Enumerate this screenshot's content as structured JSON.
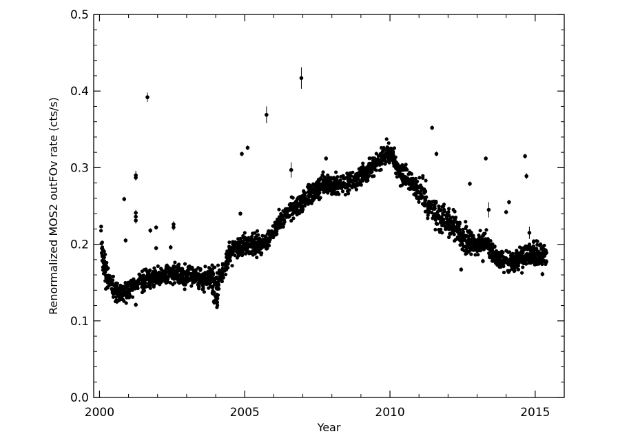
{
  "chart_data": {
    "type": "scatter",
    "title": "",
    "xlabel": "Year",
    "ylabel": "Renormalized MOS2 outFOv rate (cts/s)",
    "xlim": [
      1999.8,
      2016.0
    ],
    "ylim": [
      0.0,
      0.5
    ],
    "x_ticks": [
      {
        "value": 2000,
        "label": "2000"
      },
      {
        "value": 2005,
        "label": "2005"
      },
      {
        "value": 2010,
        "label": "2010"
      },
      {
        "value": 2015,
        "label": "2015"
      }
    ],
    "y_ticks": [
      {
        "value": 0.0,
        "label": "0.0"
      },
      {
        "value": 0.1,
        "label": "0.1"
      },
      {
        "value": 0.2,
        "label": "0.2"
      },
      {
        "value": 0.3,
        "label": "0.3"
      },
      {
        "value": 0.4,
        "label": "0.4"
      },
      {
        "value": 0.5,
        "label": "0.5"
      }
    ],
    "x_minor_step": 1,
    "y_minor_step": 0.02,
    "grid": false,
    "marker_color": "#000000",
    "trend": [
      [
        2000.05,
        0.22
      ],
      [
        2000.1,
        0.19
      ],
      [
        2000.2,
        0.165
      ],
      [
        2000.35,
        0.15
      ],
      [
        2000.5,
        0.14
      ],
      [
        2000.8,
        0.135
      ],
      [
        2001.0,
        0.14
      ],
      [
        2001.3,
        0.15
      ],
      [
        2001.7,
        0.155
      ],
      [
        2002.0,
        0.157
      ],
      [
        2002.5,
        0.16
      ],
      [
        2003.0,
        0.158
      ],
      [
        2003.5,
        0.155
      ],
      [
        2003.9,
        0.155
      ],
      [
        2004.0,
        0.14
      ],
      [
        2004.2,
        0.16
      ],
      [
        2004.4,
        0.18
      ],
      [
        2004.7,
        0.195
      ],
      [
        2005.0,
        0.2
      ],
      [
        2005.5,
        0.2
      ],
      [
        2005.8,
        0.205
      ],
      [
        2006.0,
        0.22
      ],
      [
        2006.3,
        0.235
      ],
      [
        2006.6,
        0.245
      ],
      [
        2007.0,
        0.255
      ],
      [
        2007.3,
        0.265
      ],
      [
        2007.6,
        0.275
      ],
      [
        2008.0,
        0.278
      ],
      [
        2008.5,
        0.278
      ],
      [
        2008.8,
        0.285
      ],
      [
        2009.0,
        0.29
      ],
      [
        2009.5,
        0.305
      ],
      [
        2009.9,
        0.32
      ],
      [
        2010.1,
        0.315
      ],
      [
        2010.3,
        0.295
      ],
      [
        2010.7,
        0.28
      ],
      [
        2011.0,
        0.27
      ],
      [
        2011.3,
        0.255
      ],
      [
        2011.6,
        0.24
      ],
      [
        2012.0,
        0.23
      ],
      [
        2012.3,
        0.22
      ],
      [
        2012.6,
        0.205
      ],
      [
        2013.0,
        0.2
      ],
      [
        2013.3,
        0.205
      ],
      [
        2013.5,
        0.19
      ],
      [
        2013.8,
        0.18
      ],
      [
        2014.2,
        0.178
      ],
      [
        2014.5,
        0.182
      ],
      [
        2014.8,
        0.19
      ],
      [
        2015.1,
        0.185
      ],
      [
        2015.4,
        0.185
      ]
    ],
    "outliers": [
      {
        "x": 2001.65,
        "y": 0.392,
        "err": 0.006
      },
      {
        "x": 2006.95,
        "y": 0.417,
        "err": 0.014
      },
      {
        "x": 2005.75,
        "y": 0.369,
        "err": 0.011
      },
      {
        "x": 2011.45,
        "y": 0.352,
        "err": 0.003
      },
      {
        "x": 2005.1,
        "y": 0.326,
        "err": 0.003
      },
      {
        "x": 2004.9,
        "y": 0.318,
        "err": 0.003
      },
      {
        "x": 2011.6,
        "y": 0.318,
        "err": 0.003
      },
      {
        "x": 2014.65,
        "y": 0.315,
        "err": 0.003
      },
      {
        "x": 2013.3,
        "y": 0.312,
        "err": 0.003
      },
      {
        "x": 2007.8,
        "y": 0.312,
        "err": 0.003
      },
      {
        "x": 2006.6,
        "y": 0.297,
        "err": 0.01
      },
      {
        "x": 2001.25,
        "y": 0.29,
        "err": 0.006
      },
      {
        "x": 2001.25,
        "y": 0.287,
        "err": 0.004
      },
      {
        "x": 2014.7,
        "y": 0.289,
        "err": 0.004
      },
      {
        "x": 2012.75,
        "y": 0.279,
        "err": 0.003
      },
      {
        "x": 2000.85,
        "y": 0.259,
        "err": 0.003
      },
      {
        "x": 2014.1,
        "y": 0.255,
        "err": 0.003
      },
      {
        "x": 2013.4,
        "y": 0.245,
        "err": 0.01
      },
      {
        "x": 2001.25,
        "y": 0.241,
        "err": 0.004
      },
      {
        "x": 2001.25,
        "y": 0.236,
        "err": 0.004
      },
      {
        "x": 2001.25,
        "y": 0.231,
        "err": 0.004
      },
      {
        "x": 2004.85,
        "y": 0.24,
        "err": 0.003
      },
      {
        "x": 2014.0,
        "y": 0.242,
        "err": 0.003
      },
      {
        "x": 2014.8,
        "y": 0.215,
        "err": 0.008
      },
      {
        "x": 2002.55,
        "y": 0.226,
        "err": 0.004
      },
      {
        "x": 2002.55,
        "y": 0.222,
        "err": 0.004
      },
      {
        "x": 2001.95,
        "y": 0.222,
        "err": 0.003
      },
      {
        "x": 2001.75,
        "y": 0.218,
        "err": 0.003
      },
      {
        "x": 2000.9,
        "y": 0.205,
        "err": 0.003
      },
      {
        "x": 2001.95,
        "y": 0.195,
        "err": 0.003
      },
      {
        "x": 2002.45,
        "y": 0.196,
        "err": 0.003
      },
      {
        "x": 2001.25,
        "y": 0.121,
        "err": 0.003
      },
      {
        "x": 2003.95,
        "y": 0.124,
        "err": 0.003
      },
      {
        "x": 2000.6,
        "y": 0.125,
        "err": 0.003
      },
      {
        "x": 2015.25,
        "y": 0.161,
        "err": 0.003
      },
      {
        "x": 2011.6,
        "y": 0.227,
        "err": 0.003
      },
      {
        "x": 2012.45,
        "y": 0.167,
        "err": 0.003
      },
      {
        "x": 2013.2,
        "y": 0.178,
        "err": 0.003
      }
    ]
  }
}
